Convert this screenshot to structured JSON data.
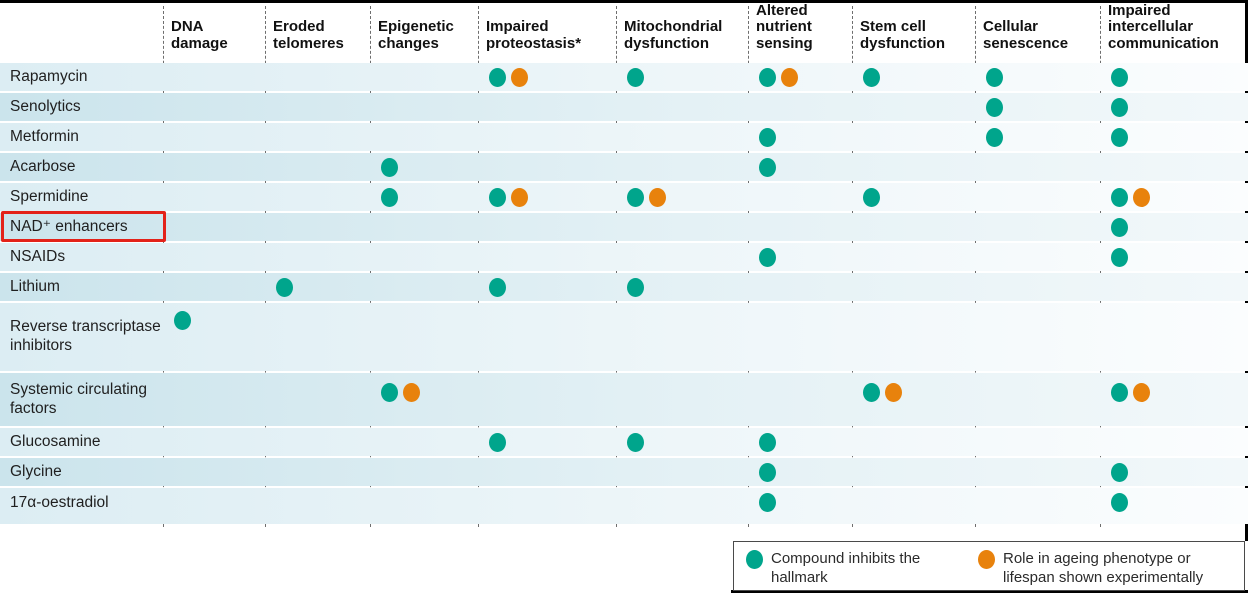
{
  "colors": {
    "teal": "#00a58c",
    "orange": "#e8820c",
    "highlight_red": "#e32219",
    "row_band_light": "#dcedf3",
    "row_band_dark": "#cbe4ec"
  },
  "chart_data": {
    "type": "table",
    "title": "",
    "columns": [
      "DNA damage",
      "Eroded telomeres",
      "Epigenetic changes",
      "Impaired proteostasis*",
      "Mitochondrial dysfunction",
      "Altered nutrient sensing",
      "Stem cell dysfunction",
      "Cellular senescence",
      "Impaired intercellular communication"
    ],
    "cell_codes": {
      "T": "teal dot only",
      "TO": "teal dot plus orange dot",
      "": "no dot"
    },
    "rows": [
      {
        "label": "Rapamycin",
        "highlighted": false,
        "cells": [
          "",
          "",
          "",
          "TO",
          "T",
          "TO",
          "T",
          "T",
          "T"
        ]
      },
      {
        "label": "Senolytics",
        "highlighted": false,
        "cells": [
          "",
          "",
          "",
          "",
          "",
          "",
          "",
          "T",
          "T"
        ]
      },
      {
        "label": "Metformin",
        "highlighted": false,
        "cells": [
          "",
          "",
          "",
          "",
          "",
          "T",
          "",
          "T",
          "T"
        ]
      },
      {
        "label": "Acarbose",
        "highlighted": false,
        "cells": [
          "",
          "",
          "T",
          "",
          "",
          "T",
          "",
          "",
          ""
        ]
      },
      {
        "label": "Spermidine",
        "highlighted": false,
        "cells": [
          "",
          "",
          "T",
          "TO",
          "TO",
          "",
          "T",
          "",
          "TO"
        ]
      },
      {
        "label": "NAD⁺ enhancers",
        "highlighted": true,
        "cells": [
          "",
          "",
          "",
          "",
          "",
          "",
          "",
          "",
          "T"
        ]
      },
      {
        "label": "NSAIDs",
        "highlighted": false,
        "cells": [
          "",
          "",
          "",
          "",
          "",
          "T",
          "",
          "",
          "T"
        ]
      },
      {
        "label": "Lithium",
        "highlighted": false,
        "cells": [
          "",
          "T",
          "",
          "T",
          "T",
          "",
          "",
          "",
          ""
        ]
      },
      {
        "label": "Reverse transcriptase inhibitors",
        "highlighted": false,
        "cells": [
          "T",
          "",
          "",
          "",
          "",
          "",
          "",
          "",
          ""
        ]
      },
      {
        "label": "Systemic circulating factors",
        "highlighted": false,
        "cells": [
          "",
          "",
          "TO",
          "",
          "",
          "",
          "TO",
          "",
          "TO"
        ]
      },
      {
        "label": "Glucosamine",
        "highlighted": false,
        "cells": [
          "",
          "",
          "",
          "T",
          "T",
          "T",
          "",
          "",
          ""
        ]
      },
      {
        "label": "Glycine",
        "highlighted": false,
        "cells": [
          "",
          "",
          "",
          "",
          "",
          "T",
          "",
          "",
          "T"
        ]
      },
      {
        "label": "17α-oestradiol",
        "highlighted": false,
        "cells": [
          "",
          "",
          "",
          "",
          "",
          "T",
          "",
          "",
          "T"
        ]
      }
    ],
    "legend": [
      {
        "color": "teal",
        "label": "Compound inhibits the hallmark"
      },
      {
        "color": "orange",
        "label": "Role in ageing phenotype or lifespan shown experimentally"
      }
    ]
  }
}
